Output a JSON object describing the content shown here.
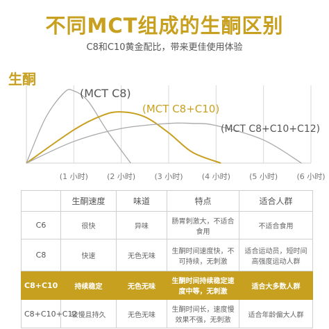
{
  "header": {
    "title": "不同MCT组成的生酮区别",
    "subtitle": "C8和C10黄金配比，带来更佳使用体验"
  },
  "colors": {
    "accent": "#c8a01f",
    "curve_gray": "#a8a8a8",
    "grid": "#d9d9d9"
  },
  "chart_data": {
    "type": "line",
    "ylabel": "生酮",
    "xlabel": "",
    "xlim": [
      0,
      6
    ],
    "ylim": [
      0,
      1
    ],
    "x_ticks": [
      "(1 小时)",
      "(2 小时)",
      "(3 小时)",
      "(4 小时)",
      "(5 小时)",
      "(6 小时)"
    ],
    "grid": true,
    "series": [
      {
        "name": "(MCT C8)",
        "color": "#a8a8a8",
        "x": [
          0,
          0.4,
          0.8,
          1.0,
          1.3,
          1.7,
          2.2
        ],
        "y": [
          0,
          0.62,
          0.98,
          1.0,
          0.86,
          0.45,
          0
        ]
      },
      {
        "name": "(MCT C8+C10)",
        "color": "#c8a01f",
        "x": [
          0,
          1.0,
          1.6,
          2.0,
          2.5,
          3.0,
          3.5,
          4.1
        ],
        "y": [
          0,
          0.46,
          0.66,
          0.71,
          0.64,
          0.42,
          0.15,
          0
        ]
      },
      {
        "name": "(MCT C8+C10+C12)",
        "color": "#a8a8a8",
        "x": [
          0,
          1.0,
          2.0,
          3.0,
          3.5,
          4.0,
          5.0,
          5.8
        ],
        "y": [
          0,
          0.3,
          0.48,
          0.55,
          0.55,
          0.52,
          0.32,
          0
        ]
      }
    ]
  },
  "table": {
    "headers": [
      "",
      "生酮速度",
      "味道",
      "特点",
      "适合人群"
    ],
    "rows": [
      {
        "cells": [
          "C6",
          "很快",
          "异味",
          "肠胃刺激大，不适合食用",
          "不适合食用"
        ],
        "highlight": false
      },
      {
        "cells": [
          "C8",
          "快速",
          "无色无味",
          "生酮时间速度快，不可持续，无刺激",
          "适合运动员，短时间高强度运动人群"
        ],
        "highlight": false
      },
      {
        "cells": [
          "C8+C10",
          "持续稳定",
          "无色无味",
          "生酮时间持续稳定速度中等，无刺激",
          "适合大多数人群"
        ],
        "highlight": true
      },
      {
        "cells": [
          "C8+C10+C12",
          "较慢且持久",
          "无色无味",
          "生酮时间长，速度慢效果不强，无刺激",
          "适合年龄偏大人群"
        ],
        "highlight": false
      }
    ]
  }
}
